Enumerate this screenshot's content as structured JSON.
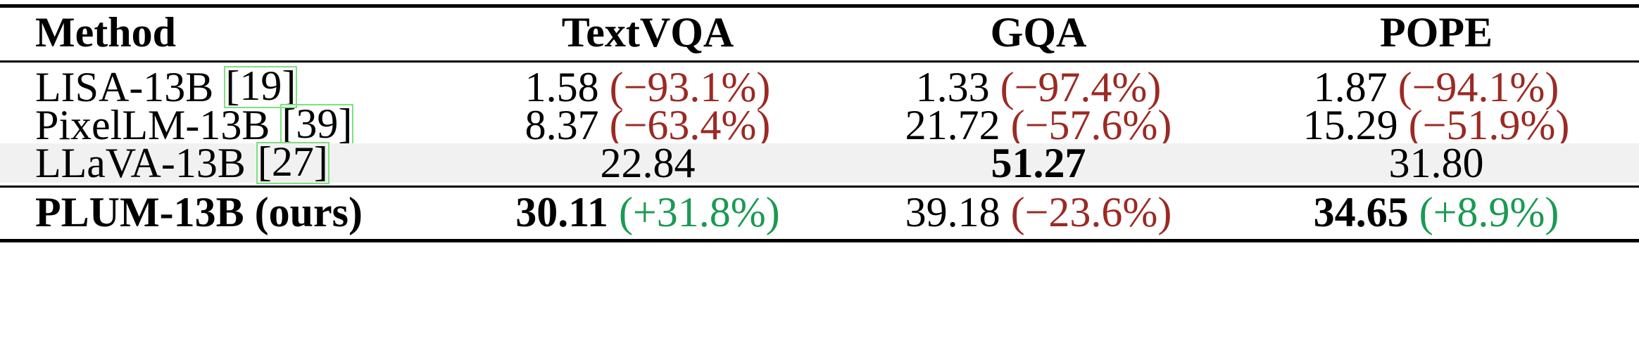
{
  "header": {
    "method": "Method",
    "col1": "TextVQA",
    "col2": "GQA",
    "col3": "POPE"
  },
  "rows": [
    {
      "name": "LISA-13B ",
      "cite": "[19]",
      "c1_val": "1.58",
      "c1_delta": "(−93.1%)",
      "c2_val": "1.33",
      "c2_delta": "(−97.4%)",
      "c3_val": "1.87",
      "c3_delta": "(−94.1%)"
    },
    {
      "name": "PixelLM-13B ",
      "cite": "[39]",
      "c1_val": "8.37",
      "c1_delta": "(−63.4%)",
      "c2_val": "21.72",
      "c2_delta": "(−57.6%)",
      "c3_val": "15.29",
      "c3_delta": "(−51.9%)"
    },
    {
      "name": "LLaVA-13B ",
      "cite": "[27]",
      "c1_val": "22.84",
      "c2_val": "51.27",
      "c3_val": "31.80"
    },
    {
      "name": "PLUM-13B (ours)",
      "c1_val": "30.11",
      "c1_delta": "(+31.8%)",
      "c2_val": "39.18",
      "c2_delta": "(−23.6%)",
      "c3_val": "34.65",
      "c3_delta": "(+8.9%)"
    }
  ],
  "colors": {
    "negative": "#9b2a23",
    "positive": "#1a9a52",
    "highlight_row": "#f1f1f1",
    "citation_box": "#7fe07f"
  }
}
